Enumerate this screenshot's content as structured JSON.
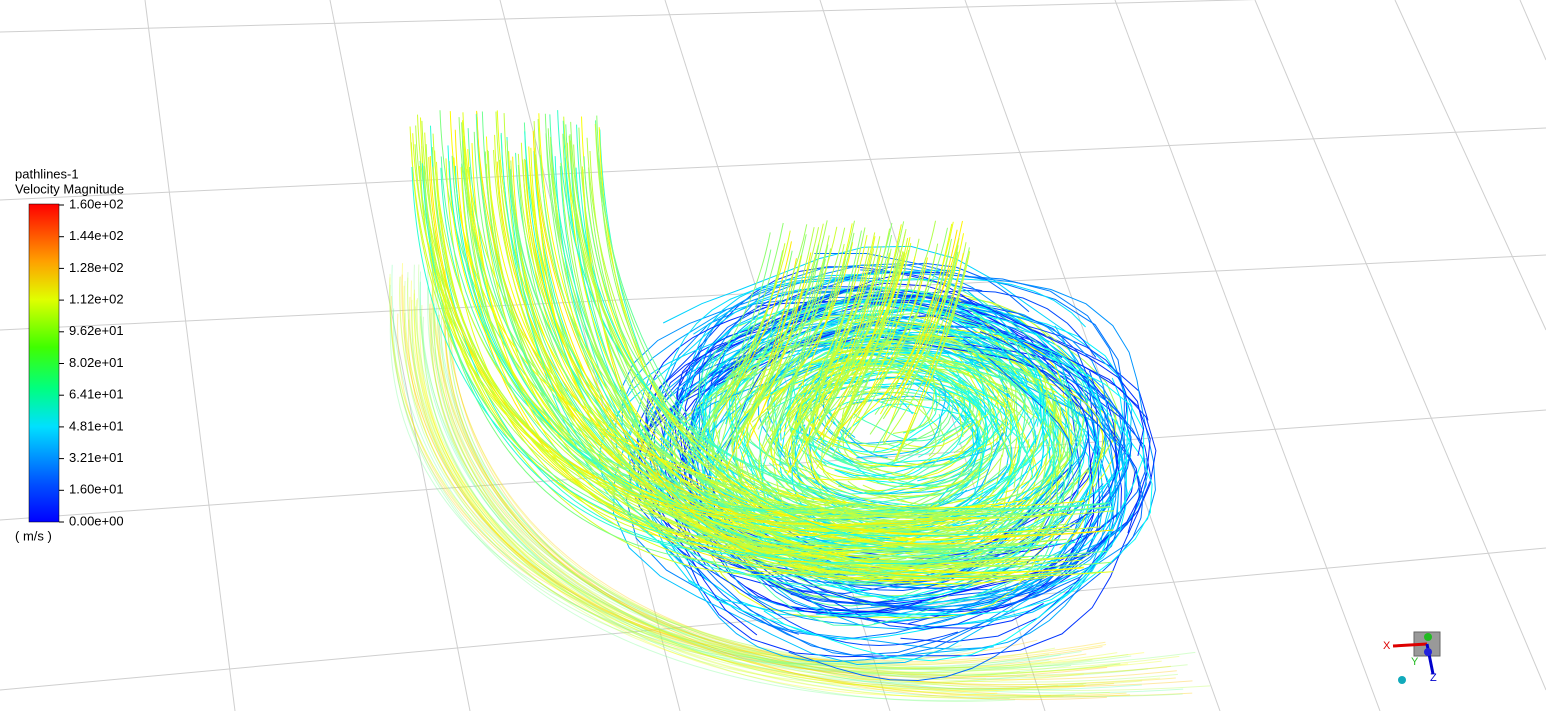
{
  "legend": {
    "title": "pathlines-1",
    "quantity": "Velocity Magnitude",
    "ticks": [
      "1.60e+02",
      "1.44e+02",
      "1.28e+02",
      "1.12e+02",
      "9.62e+01",
      "8.02e+01",
      "6.41e+01",
      "4.81e+01",
      "3.21e+01",
      "1.60e+01",
      "0.00e+00"
    ],
    "unit": "( m/s )"
  },
  "triad": {
    "x": "X",
    "y": "Y",
    "z": "Z"
  }
}
